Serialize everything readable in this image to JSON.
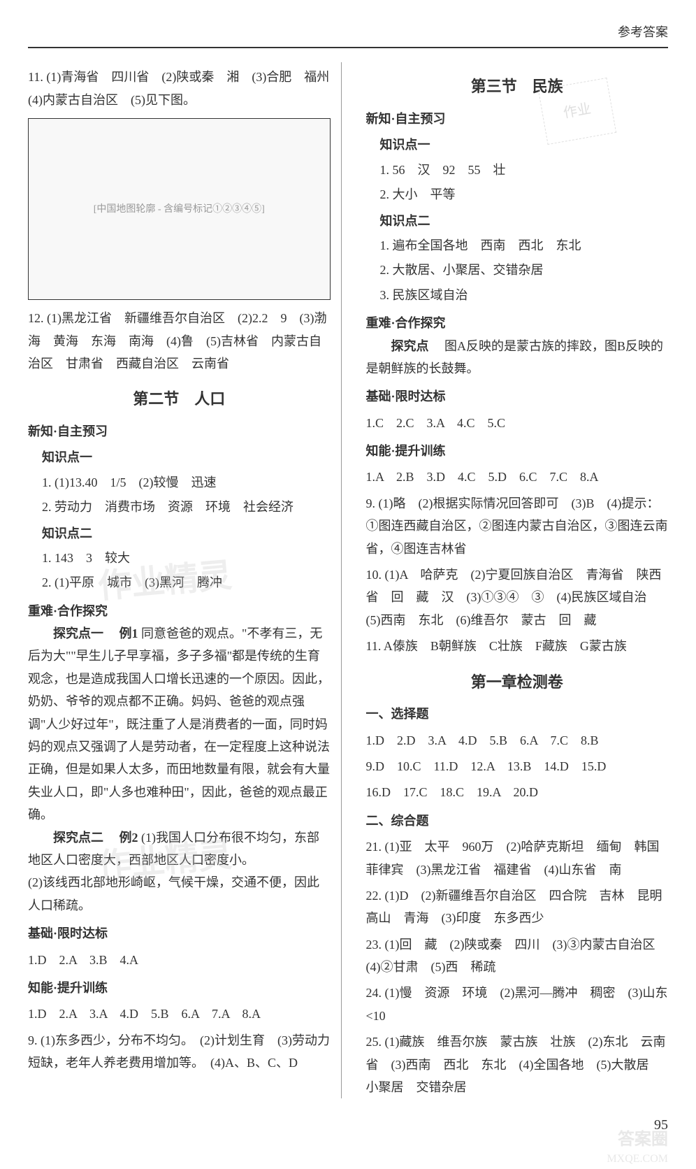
{
  "header": {
    "title": "参考答案"
  },
  "left": {
    "q11": {
      "prefix": "11.",
      "text": "(1)青海省　四川省　(2)陕或秦　湘　(3)合肥　福州　(4)内蒙古自治区　(5)见下图。"
    },
    "map_label": "[中国地图轮廓 - 含编号标记①②③④⑤]",
    "q12": {
      "prefix": "12.",
      "text": "(1)黑龙江省　新疆维吾尔自治区　(2)2.2　9　(3)渤海　黄海　东海　南海　(4)鲁　(5)吉林省　内蒙古自治区　甘肃省　西藏自治区　云南省"
    },
    "section2_title": "第二节　人口",
    "xinzhi_heading": "新知·自主预习",
    "zhishi1": "知识点一",
    "zhishi1_1": "1. (1)13.40　1/5　(2)较慢　迅速",
    "zhishi1_2": "2. 劳动力　消费市场　资源　环境　社会经济",
    "zhishi2": "知识点二",
    "zhishi2_1": "1. 143　3　较大",
    "zhishi2_2": "2. (1)平原　城市　(3)黑河　腾冲",
    "zhongnan_heading": "重难·合作探究",
    "tanjiu1_label": "探究点一",
    "tanjiu1_ex": "例1",
    "tanjiu1_text": "同意爸爸的观点。\"不孝有三，无后为大\"\"早生儿子早享福，多子多福\"都是传统的生育观念，也是造成我国人口增长迅速的一个原因。因此，奶奶、爷爷的观点都不正确。妈妈、爸爸的观点强调\"人少好过年\"，既注重了人是消费者的一面，同时妈妈的观点又强调了人是劳动者，在一定程度上这种说法正确，但是如果人太多，而田地数量有限，就会有大量失业人口，即\"人多也难种田\"，因此，爸爸的观点最正确。",
    "tanjiu2_label": "探究点二",
    "tanjiu2_ex": "例2",
    "tanjiu2_text1": "(1)我国人口分布很不均匀，东部地区人口密度大，西部地区人口密度小。",
    "tanjiu2_text2": "(2)该线西北部地形崎岖，气候干燥，交通不便，因此人口稀疏。",
    "jichu_heading": "基础·限时达标",
    "jichu_answers": "1.D　2.A　3.B　4.A",
    "zhineng_heading": "知能·提升训练",
    "zhineng_answers": "1.D　2.A　3.A　4.D　5.B　6.A　7.A　8.A",
    "q9": "9. (1)东多西少，分布不均匀。　(2)计划生育　(3)劳动力短缺，老年人养老费用增加等。　(4)A、B、C、D"
  },
  "right": {
    "section3_title": "第三节　民族",
    "xinzhi_heading": "新知·自主预习",
    "zhishi1": "知识点一",
    "zhishi1_1": "1. 56　汉　92　55　壮",
    "zhishi1_2": "2. 大小　平等",
    "zhishi2": "知识点二",
    "zhishi2_1": "1. 遍布全国各地　西南　西北　东北",
    "zhishi2_2": "2. 大散居、小聚居、交错杂居",
    "zhishi2_3": "3. 民族区域自治",
    "zhongnan_heading": "重难·合作探究",
    "tanjiu_label": "探究点",
    "tanjiu_text": "图A反映的是蒙古族的摔跤，图B反映的是朝鲜族的长鼓舞。",
    "jichu_heading": "基础·限时达标",
    "jichu_answers": "1.C　2.C　3.A　4.C　5.C",
    "zhineng_heading": "知能·提升训练",
    "zhineng_answers": "1.A　2.B　3.D　4.C　5.D　6.C　7.C　8.A",
    "q9": "9. (1)略　(2)根据实际情况回答即可　(3)B　(4)提示：①图连西藏自治区，②图连内蒙古自治区，③图连云南省，④图连吉林省",
    "q10": "10. (1)A　哈萨克　(2)宁夏回族自治区　青海省　陕西省　回　藏　汉　(3)①③④　③　(4)民族区域自治　(5)西南　东北　(6)维吾尔　蒙古　回　藏",
    "q11": "11. A傣族　B朝鲜族　C壮族　F藏族　G蒙古族",
    "chapter1_title": "第一章检测卷",
    "xuanze_heading": "一、选择题",
    "xuanze_row1": "1.D　2.D　3.A　4.D　5.B　6.A　7.C　8.B",
    "xuanze_row2": "9.D　10.C　11.D　12.A　13.B　14.D　15.D",
    "xuanze_row3": "16.D　17.C　18.C　19.A　20.D",
    "zonghe_heading": "二、综合题",
    "q21": "21. (1)亚　太平　960万　(2)哈萨克斯坦　缅甸　韩国　菲律宾　(3)黑龙江省　福建省　(4)山东省　南",
    "q22": "22. (1)D　(2)新疆维吾尔自治区　四合院　吉林　昆明　高山　青海　(3)印度　东多西少",
    "q23": "23. (1)回　藏　(2)陕或秦　四川　(3)③内蒙古自治区　(4)②甘肃　(5)西　稀疏",
    "q24": "24. (1)慢　资源　环境　(2)黑河—腾冲　稠密　(3)山东　<10",
    "q25": "25. (1)藏族　维吾尔族　蒙古族　壮族　(2)东北　云南省　(3)西南　西北　东北　(4)全国各地　(5)大散居　小聚居　交错杂居"
  },
  "stamp_text": "作业",
  "watermark1": "作业精灵",
  "watermark2": "作业精灵",
  "page_number": "95",
  "footer_brand": "答案圈",
  "footer_url": "MXQE.COM"
}
